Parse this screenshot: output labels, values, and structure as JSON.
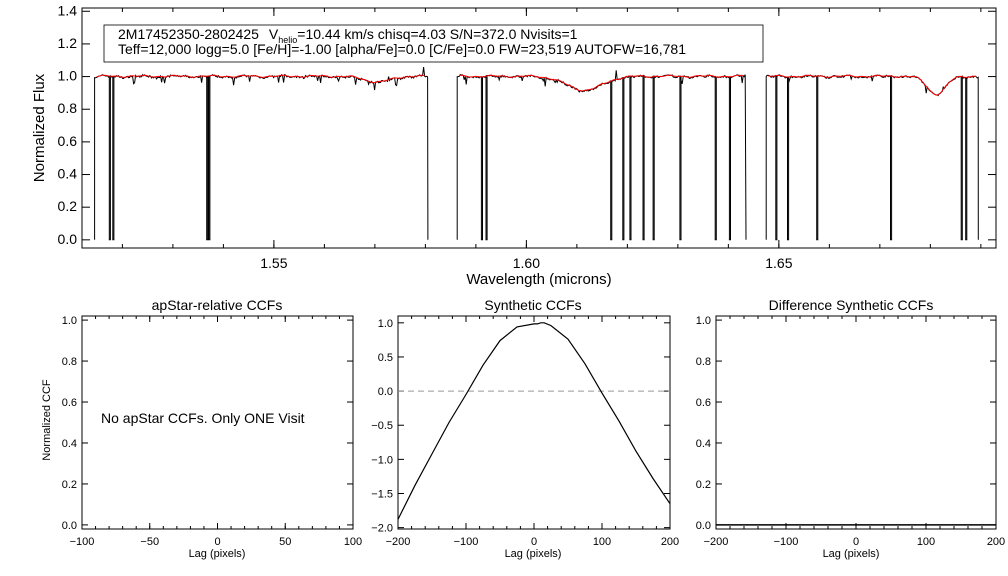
{
  "chart_data": [
    {
      "id": "spectrum",
      "type": "line",
      "xlabel": "Wavelength (microns)",
      "ylabel": "Normalized Flux",
      "xlim": [
        1.512,
        1.693
      ],
      "ylim": [
        -0.05,
        1.42
      ],
      "xticks": [
        "1.55",
        "1.60",
        "1.65"
      ],
      "yticks": [
        "0.0",
        "0.2",
        "0.4",
        "0.6",
        "0.8",
        "1.0",
        "1.2",
        "1.4"
      ],
      "info": {
        "star_id": "2M17452350-2802425",
        "v_prefix": "V",
        "v_sub": "helio",
        "v_rest": "=10.44 km/s  chisq=4.03  S/N=372.0  Nvisits=1",
        "line2": "Teff=12,000 logg=5.0 [Fe/H]=-1.00 [alpha/Fe]=0.0 [C/Fe]=0.0 FW=23,519 AUTOFW=16,781"
      },
      "chips": [
        [
          1.5145,
          1.5805
        ],
        [
          1.5863,
          1.6435
        ],
        [
          1.6475,
          1.6895
        ]
      ],
      "bad_pixels": [
        1.5175,
        1.5182,
        1.5368,
        1.5372,
        1.5912,
        1.5921,
        1.6168,
        1.6192,
        1.6206,
        1.6232,
        1.6252,
        1.6305,
        1.6375,
        1.6403,
        1.6495,
        1.6518,
        1.6576,
        1.6722,
        1.6862,
        1.6871
      ],
      "absorption": [
        {
          "center": 1.5705,
          "depth": 0.035,
          "width": 0.0025
        },
        {
          "center": 1.6115,
          "depth": 0.085,
          "width": 0.0035
        },
        {
          "center": 1.6812,
          "depth": 0.11,
          "width": 0.0018
        }
      ],
      "series": [
        {
          "name": "Observed",
          "color": "#000000"
        },
        {
          "name": "Model",
          "color": "#ff0000"
        }
      ]
    },
    {
      "id": "apstar-ccf",
      "type": "line",
      "title": "apStar-relative CCFs",
      "xlabel": "Lag (pixels)",
      "ylabel": "Normalized CCF",
      "xlim": [
        -100,
        100
      ],
      "ylim": [
        -0.02,
        1.02
      ],
      "xticks": [
        "−100",
        "−50",
        "0",
        "50",
        "100"
      ],
      "yticks": [
        "0.0",
        "0.2",
        "0.4",
        "0.6",
        "0.8",
        "1.0"
      ],
      "annotation": "No apStar CCFs.  Only ONE Visit",
      "series": []
    },
    {
      "id": "synthetic-ccf",
      "type": "line",
      "title": "Synthetic CCFs",
      "xlabel": "Lag (pixels)",
      "xlim": [
        -200,
        200
      ],
      "ylim": [
        -2.02,
        1.1
      ],
      "xticks": [
        "−200",
        "−100",
        "0",
        "100",
        "200"
      ],
      "yticks": [
        "−2.0",
        "−1.5",
        "−1.0",
        "−0.5",
        "0.0",
        "0.5",
        "1.0"
      ],
      "zero_line": 0,
      "series": [
        {
          "name": "CCF",
          "color": "#000000",
          "x": [
            -200,
            -175,
            -150,
            -125,
            -100,
            -75,
            -50,
            -25,
            0,
            5,
            10,
            15,
            25,
            50,
            75,
            100,
            125,
            150,
            175,
            200
          ],
          "y": [
            -1.88,
            -1.38,
            -0.92,
            -0.46,
            -0.05,
            0.38,
            0.74,
            0.94,
            0.985,
            0.985,
            1.0,
            1.0,
            0.96,
            0.76,
            0.4,
            -0.03,
            -0.44,
            -0.88,
            -1.28,
            -1.65
          ]
        }
      ]
    },
    {
      "id": "difference-ccf",
      "type": "line",
      "title": "Difference Synthetic CCFs",
      "xlabel": "Lag (pixels)",
      "xlim": [
        -200,
        200
      ],
      "ylim": [
        -0.02,
        1.02
      ],
      "xticks": [
        "−200",
        "−100",
        "0",
        "100",
        "200"
      ],
      "yticks": [
        "0.0",
        "0.2",
        "0.4",
        "0.6",
        "0.8",
        "1.0"
      ],
      "series": [
        {
          "name": "Difference",
          "color": "#000000",
          "x": [
            -200,
            200
          ],
          "y": [
            0,
            0
          ]
        }
      ]
    }
  ]
}
